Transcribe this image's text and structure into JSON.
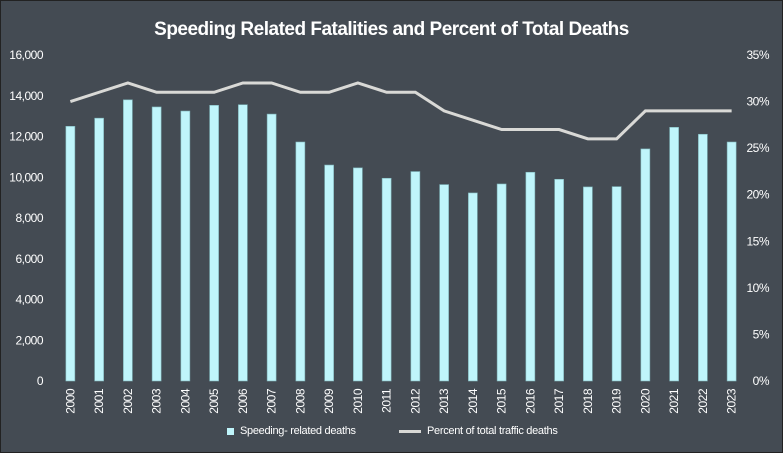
{
  "chart_data": {
    "type": "bar+line",
    "title": "Speeding Related Fatalities and Percent of Total Deaths",
    "categories": [
      "2000",
      "2001",
      "2002",
      "2003",
      "2004",
      "2005",
      "2006",
      "2007",
      "2008",
      "2009",
      "2010",
      "2011",
      "2012",
      "2013",
      "2014",
      "2015",
      "2016",
      "2017",
      "2018",
      "2019",
      "2020",
      "2021",
      "2022",
      "2023"
    ],
    "series": [
      {
        "name": "Speeding- related deaths",
        "type": "bar",
        "axis": "left",
        "color": "#bff5fb",
        "values": [
          12500,
          12900,
          13800,
          13450,
          13250,
          13530,
          13560,
          13100,
          11730,
          10600,
          10460,
          9950,
          10280,
          9640,
          9230,
          9670,
          10245,
          9900,
          9525,
          9540,
          11390,
          12450,
          12110,
          11730
        ]
      },
      {
        "name": "Percent of total traffic deaths",
        "type": "line",
        "axis": "right",
        "color": "#d9d9d6",
        "values": [
          30,
          31,
          32,
          31,
          31,
          31,
          32,
          32,
          31,
          31,
          32,
          31,
          31,
          29,
          28,
          27,
          27,
          27,
          26,
          26,
          29,
          29,
          29,
          29
        ]
      }
    ],
    "ylim_left": [
      0,
      16000
    ],
    "yticks_left": [
      "0",
      "2,000",
      "4,000",
      "6,000",
      "8,000",
      "10,000",
      "12,000",
      "14,000",
      "16,000"
    ],
    "ylim_right": [
      0,
      35
    ],
    "yticks_right": [
      "0%",
      "5%",
      "10%",
      "15%",
      "20%",
      "25%",
      "30%",
      "35%"
    ],
    "grid": false,
    "legend": "bottom"
  }
}
